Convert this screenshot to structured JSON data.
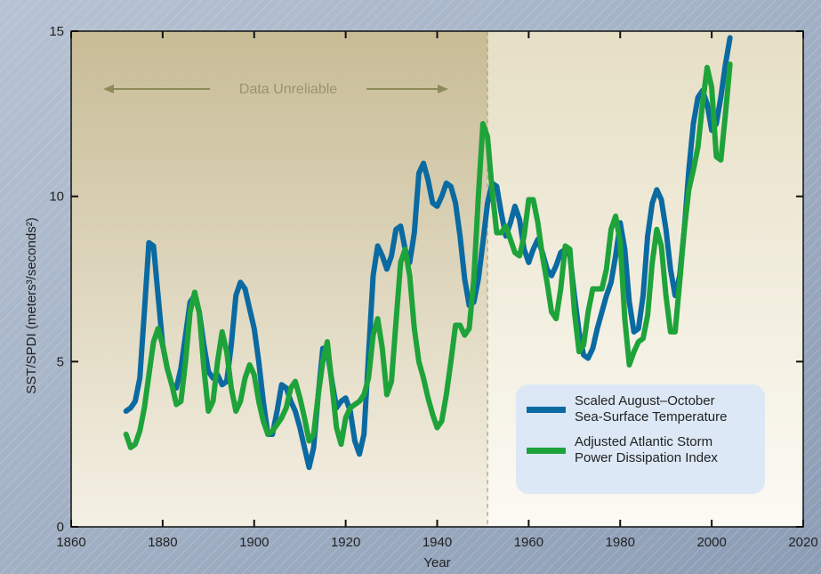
{
  "chart_data": {
    "type": "line",
    "xlabel": "Year",
    "ylabel": "SST/SPDI (meters³/seconds²)",
    "annotation": "Data Unreliable",
    "reliable_from": 1951,
    "xlim": [
      1860,
      2020
    ],
    "xticks": [
      1860,
      1880,
      1900,
      1920,
      1940,
      1960,
      1980,
      2000,
      2020
    ],
    "ylim": [
      0,
      15
    ],
    "yticks": [
      0,
      5,
      10,
      15
    ],
    "x": [
      1872,
      1873,
      1874,
      1875,
      1876,
      1877,
      1878,
      1879,
      1880,
      1881,
      1882,
      1883,
      1884,
      1885,
      1886,
      1887,
      1888,
      1889,
      1890,
      1891,
      1892,
      1893,
      1894,
      1895,
      1896,
      1897,
      1898,
      1899,
      1900,
      1901,
      1902,
      1903,
      1904,
      1905,
      1906,
      1907,
      1908,
      1909,
      1910,
      1911,
      1912,
      1913,
      1914,
      1915,
      1916,
      1917,
      1918,
      1919,
      1920,
      1921,
      1922,
      1923,
      1924,
      1925,
      1926,
      1927,
      1928,
      1929,
      1930,
      1931,
      1932,
      1933,
      1934,
      1935,
      1936,
      1937,
      1938,
      1939,
      1940,
      1941,
      1942,
      1943,
      1944,
      1945,
      1946,
      1947,
      1948,
      1949,
      1950,
      1951,
      1952,
      1953,
      1954,
      1955,
      1956,
      1957,
      1958,
      1959,
      1960,
      1961,
      1962,
      1963,
      1964,
      1965,
      1966,
      1967,
      1968,
      1969,
      1970,
      1971,
      1972,
      1973,
      1974,
      1975,
      1976,
      1977,
      1978,
      1979,
      1980,
      1981,
      1982,
      1983,
      1984,
      1985,
      1986,
      1987,
      1988,
      1989,
      1990,
      1991,
      1992,
      1993,
      1994,
      1995,
      1996,
      1997,
      1998,
      1999,
      2000,
      2001,
      2002,
      2003,
      2004
    ],
    "series": [
      {
        "name": "Scaled August–October Sea-Surface Temperature",
        "color": "#0a6aa1",
        "values": [
          3.5,
          3.6,
          3.8,
          4.5,
          6.5,
          8.6,
          8.5,
          7.0,
          5.5,
          4.8,
          4.3,
          4.2,
          4.8,
          5.8,
          6.8,
          7.0,
          6.5,
          5.5,
          4.7,
          4.5,
          4.6,
          4.3,
          4.4,
          5.5,
          7.0,
          7.4,
          7.2,
          6.6,
          6.0,
          5.0,
          3.8,
          2.8,
          2.8,
          3.5,
          4.3,
          4.2,
          3.8,
          3.5,
          3.0,
          2.4,
          1.8,
          2.4,
          4.0,
          5.4,
          5.3,
          4.4,
          3.6,
          3.8,
          3.9,
          3.5,
          2.6,
          2.2,
          2.8,
          5.2,
          7.6,
          8.5,
          8.2,
          7.8,
          8.2,
          9.0,
          9.1,
          8.4,
          8.0,
          8.9,
          10.7,
          11.0,
          10.5,
          9.8,
          9.7,
          10.0,
          10.4,
          10.3,
          9.8,
          8.8,
          7.5,
          6.7,
          6.8,
          7.5,
          8.6,
          9.8,
          10.4,
          10.3,
          9.5,
          8.8,
          9.2,
          9.7,
          9.3,
          8.4,
          8.0,
          8.4,
          8.7,
          8.3,
          7.8,
          7.6,
          7.9,
          8.3,
          8.4,
          8.2,
          7.0,
          5.9,
          5.2,
          5.1,
          5.4,
          6.0,
          6.5,
          7.0,
          7.4,
          8.2,
          9.2,
          8.4,
          6.8,
          5.9,
          6.0,
          7.0,
          8.8,
          9.8,
          10.2,
          9.9,
          9.0,
          7.8,
          7.0,
          7.6,
          9.0,
          10.8,
          12.2,
          13.0,
          13.2,
          12.8,
          12.0,
          12.2,
          13.0,
          14.0,
          14.8
        ]
      },
      {
        "name": "Adjusted Atlantic Storm Power Dissipation Index",
        "color": "#1ea33a",
        "values": [
          2.8,
          2.4,
          2.5,
          2.9,
          3.6,
          4.6,
          5.6,
          6.0,
          5.5,
          4.8,
          4.3,
          3.7,
          3.8,
          5.0,
          6.5,
          7.1,
          6.5,
          4.8,
          3.5,
          3.8,
          5.0,
          5.9,
          5.3,
          4.2,
          3.5,
          3.8,
          4.5,
          4.9,
          4.6,
          3.8,
          3.2,
          2.8,
          2.9,
          3.1,
          3.3,
          3.6,
          4.2,
          4.4,
          3.9,
          3.3,
          2.6,
          2.8,
          4.0,
          5.0,
          5.6,
          4.3,
          3.0,
          2.5,
          3.3,
          3.6,
          3.7,
          3.8,
          4.0,
          4.5,
          5.8,
          6.3,
          5.4,
          4.0,
          4.4,
          6.2,
          8.0,
          8.4,
          7.6,
          6.0,
          5.0,
          4.5,
          3.9,
          3.4,
          3.0,
          3.2,
          4.0,
          5.0,
          6.1,
          6.1,
          5.8,
          6.0,
          7.5,
          10.0,
          12.2,
          11.8,
          10.2,
          8.9,
          8.9,
          9.1,
          8.7,
          8.3,
          8.2,
          8.8,
          9.9,
          9.9,
          9.2,
          8.2,
          7.4,
          6.5,
          6.3,
          7.2,
          8.5,
          8.4,
          6.5,
          5.3,
          5.5,
          6.5,
          7.2,
          7.2,
          7.2,
          7.8,
          9.0,
          9.4,
          8.6,
          6.3,
          4.9,
          5.3,
          5.6,
          5.7,
          6.4,
          8.0,
          9.0,
          8.5,
          7.0,
          5.9,
          5.9,
          7.4,
          9.0,
          10.2,
          10.8,
          11.5,
          12.8,
          13.9,
          13.3,
          11.2,
          11.1,
          12.5,
          14.0
        ]
      }
    ]
  }
}
